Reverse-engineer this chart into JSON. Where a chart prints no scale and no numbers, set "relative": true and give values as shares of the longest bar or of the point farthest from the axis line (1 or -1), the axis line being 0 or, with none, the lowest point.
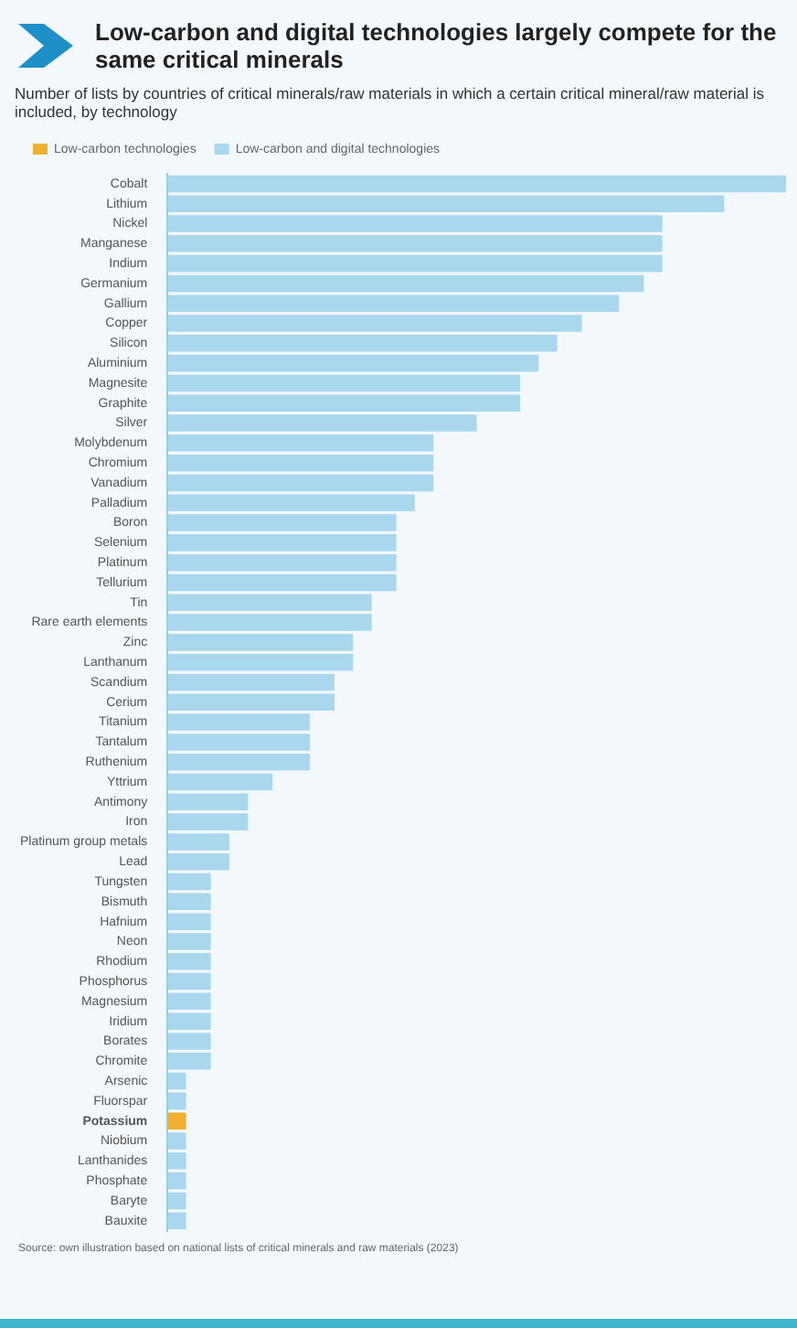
{
  "chart_data": {
    "type": "bar",
    "orientation": "horizontal",
    "stacked": true,
    "relative": true,
    "title": "Low-carbon and digital technologies largely compete for the same critical minerals",
    "subtitle": "Number of lists by countries of critical minerals/raw materials in which a certain critical mineral/raw material is included, by technology",
    "categories": [
      "Cobalt",
      "Lithium",
      "Nickel",
      "Manganese",
      "Indium",
      "Germanium",
      "Gallium",
      "Copper",
      "Silicon",
      "Aluminium",
      "Magnesite",
      "Graphite",
      "Silver",
      "Molybdenum",
      "Chromium",
      "Vanadium",
      "Palladium",
      "Boron",
      "Selenium",
      "Platinum",
      "Tellurium",
      "Tin",
      "Rare earth elements",
      "Zinc",
      "Lanthanum",
      "Scandium",
      "Cerium",
      "Titanium",
      "Tantalum",
      "Ruthenium",
      "Yttrium",
      "Antimony",
      "Iron",
      "Platinum group metals",
      "Lead",
      "Tungsten",
      "Bismuth",
      "Hafnium",
      "Neon",
      "Rhodium",
      "Phosphorus",
      "Magnesium",
      "Iridium",
      "Borates",
      "Chromite",
      "Arsenic",
      "Fluorspar",
      "Potassium",
      "Niobium",
      "Lanthanides",
      "Phosphate",
      "Baryte",
      "Bauxite"
    ],
    "series": [
      {
        "name": "Low-carbon technologies",
        "color": "#f0b030",
        "values": [
          null,
          null,
          null,
          null,
          null,
          null,
          null,
          null,
          null,
          null,
          null,
          null,
          null,
          null,
          null,
          null,
          null,
          null,
          null,
          null,
          null,
          null,
          null,
          null,
          null,
          null,
          null,
          null,
          null,
          null,
          null,
          null,
          null,
          null,
          null,
          null,
          null,
          null,
          null,
          null,
          null,
          null,
          null,
          null,
          null,
          null,
          null,
          0.03,
          null,
          null,
          null,
          null,
          null
        ]
      },
      {
        "name": "Low-carbon and digital technologies",
        "color": "#a9d8ee",
        "values": [
          1,
          0.9,
          0.8,
          0.8,
          0.8,
          0.77,
          0.73,
          0.67,
          0.63,
          0.6,
          0.57,
          0.57,
          0.5,
          0.43,
          0.43,
          0.43,
          0.4,
          0.37,
          0.37,
          0.37,
          0.37,
          0.33,
          0.33,
          0.3,
          0.3,
          0.27,
          0.27,
          0.23,
          0.23,
          0.23,
          0.17,
          0.13,
          0.13,
          0.1,
          0.1,
          0.07,
          0.07,
          0.07,
          0.07,
          0.07,
          0.07,
          0.07,
          0.07,
          0.07,
          0.07,
          0.03,
          0.03,
          null,
          0.03,
          0.03,
          0.03,
          0.03,
          0.03
        ]
      }
    ],
    "legend": "top left",
    "annotations": [
      "Source: own illustration based on national lists of critical minerals and raw materials (2023)"
    ]
  }
}
